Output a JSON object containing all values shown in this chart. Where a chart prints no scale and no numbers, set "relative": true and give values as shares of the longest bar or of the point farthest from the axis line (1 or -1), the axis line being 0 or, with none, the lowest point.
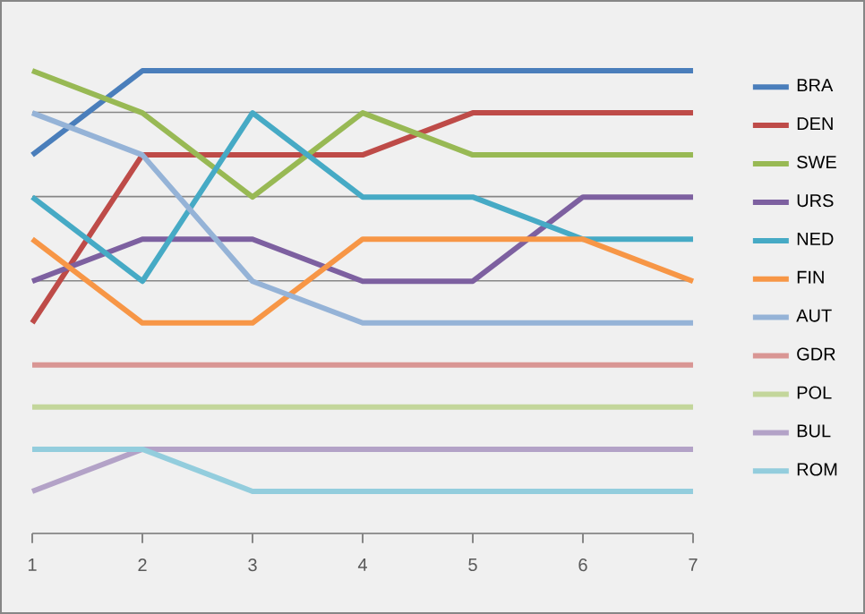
{
  "chart_data": {
    "type": "line",
    "relative": true,
    "grid": "y",
    "legend": "right",
    "marker": "none",
    "line_style": "solid",
    "categories": [
      "1",
      "2",
      "3",
      "4",
      "5",
      "6",
      "7"
    ],
    "series": [
      {
        "name": "BRA",
        "color": "#4a7ebb",
        "values": [
          0.818,
          1,
          1,
          1,
          1,
          1,
          1
        ]
      },
      {
        "name": "DEN",
        "color": "#be4b48",
        "values": [
          0.455,
          0.818,
          0.818,
          0.818,
          0.909,
          0.909,
          0.909
        ]
      },
      {
        "name": "SWE",
        "color": "#98b954",
        "values": [
          1,
          0.909,
          0.727,
          0.909,
          0.818,
          0.818,
          0.818
        ]
      },
      {
        "name": "URS",
        "color": "#7d60a0",
        "values": [
          0.545,
          0.636,
          0.636,
          0.545,
          0.545,
          0.727,
          0.727
        ]
      },
      {
        "name": "NED",
        "color": "#46aac5",
        "values": [
          0.727,
          0.545,
          0.909,
          0.727,
          0.727,
          0.636,
          0.636
        ]
      },
      {
        "name": "FIN",
        "color": "#f79646",
        "values": [
          0.636,
          0.455,
          0.455,
          0.636,
          0.636,
          0.636,
          0.545
        ]
      },
      {
        "name": "AUT",
        "color": "#95b3d7",
        "values": [
          0.909,
          0.818,
          0.545,
          0.455,
          0.455,
          0.455,
          0.455
        ]
      },
      {
        "name": "GDR",
        "color": "#d99694",
        "values": [
          0.364,
          0.364,
          0.364,
          0.364,
          0.364,
          0.364,
          0.364
        ]
      },
      {
        "name": "POL",
        "color": "#c3d69b",
        "values": [
          0.273,
          0.273,
          0.273,
          0.273,
          0.273,
          0.273,
          0.273
        ]
      },
      {
        "name": "BUL",
        "color": "#b3a2c7",
        "values": [
          0.091,
          0.182,
          0.182,
          0.182,
          0.182,
          0.182,
          0.182
        ]
      },
      {
        "name": "ROM",
        "color": "#93cddd",
        "values": [
          0.182,
          0.182,
          0.091,
          0.091,
          0.091,
          0.091,
          0.091
        ]
      }
    ]
  }
}
